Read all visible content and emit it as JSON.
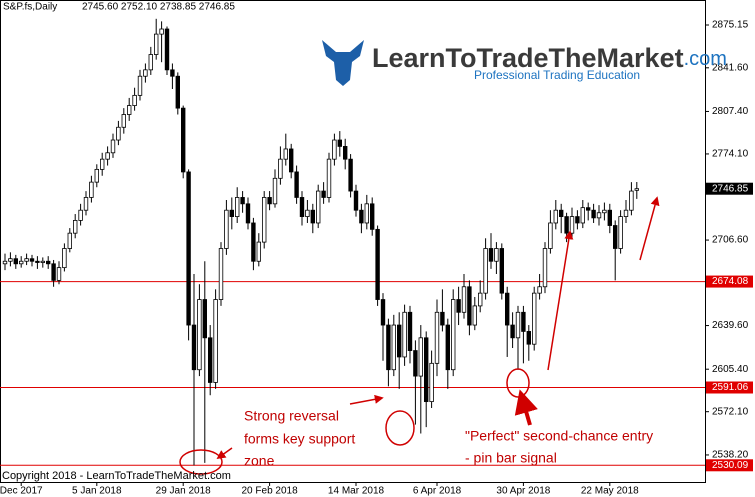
{
  "chart_data": {
    "type": "candlestick",
    "symbol": "S&P.fs,Daily",
    "header_ohlc": "2745.60 2752.10 2738.85 2746.85",
    "copyright": "Copyright 2018 - LearnToTradeTheMarket.com",
    "logo_name": "LearnToTradeTheMarket",
    "logo_suffix": ".com",
    "logo_tagline": "Professional Trading Education",
    "annotations": [
      "Strong reversal",
      "forms key support",
      "zone",
      "\"Perfect\" second-chance entry",
      "- pin bar signal"
    ],
    "categories": [
      null,
      null,
      null,
      "Dec 2017",
      null,
      null,
      null,
      null,
      null,
      null,
      null,
      null,
      null,
      null,
      null,
      null,
      null,
      "5 Jan 2018",
      null,
      null,
      null,
      null,
      null,
      null,
      null,
      null,
      null,
      null,
      null,
      null,
      null,
      null,
      null,
      "29 Jan 2018",
      null,
      null,
      null,
      null,
      null,
      null,
      null,
      null,
      null,
      null,
      null,
      null,
      null,
      null,
      null,
      "20 Feb 2018",
      null,
      null,
      null,
      null,
      null,
      null,
      null,
      null,
      null,
      null,
      null,
      null,
      null,
      null,
      null,
      "14 Mar 2018",
      null,
      null,
      null,
      null,
      null,
      null,
      null,
      null,
      null,
      null,
      null,
      null,
      null,
      null,
      "6 Apr 2018",
      null,
      null,
      null,
      null,
      null,
      null,
      null,
      null,
      null,
      null,
      null,
      null,
      null,
      null,
      null,
      "30 Apr 2018",
      null,
      null,
      null,
      null,
      null,
      null,
      null,
      null,
      null,
      null,
      null,
      null,
      null,
      null,
      null,
      "22 May 2018",
      null,
      null,
      null,
      null,
      null
    ],
    "open": [
      2688,
      2690,
      2692,
      2688,
      2690,
      2692,
      2690,
      2689,
      2690,
      2688,
      2675,
      2685,
      2700,
      2712,
      2722,
      2730,
      2740,
      2752,
      2762,
      2770,
      2775,
      2785,
      2795,
      2805,
      2812,
      2820,
      2835,
      2840,
      2852,
      2868,
      2872,
      2840,
      2835,
      2810,
      2760,
      2640,
      2605,
      2660,
      2630,
      2595,
      2660,
      2700,
      2730,
      2725,
      2740,
      2735,
      2720,
      2690,
      2705,
      2740,
      2735,
      2755,
      2770,
      2778,
      2760,
      2740,
      2725,
      2730,
      2720,
      2745,
      2740,
      2770,
      2785,
      2780,
      2770,
      2745,
      2730,
      2720,
      2735,
      2715,
      2660,
      2640,
      2605,
      2640,
      2615,
      2650,
      2620,
      2600,
      2630,
      2580,
      2610,
      2650,
      2640,
      2605,
      2660,
      2650,
      2670,
      2640,
      2655,
      2665,
      2700,
      2690,
      2700,
      2665,
      2640,
      2630,
      2650,
      2635,
      2625,
      2665,
      2670,
      2700,
      2720,
      2730,
      2725,
      2712,
      2725,
      2720,
      2732,
      2730,
      2724,
      2728,
      2730,
      2718,
      2700,
      2725,
      2730,
      2745.6
    ],
    "high": [
      2696,
      2697,
      2695,
      2694,
      2696,
      2695,
      2694,
      2693,
      2694,
      2691,
      2690,
      2704,
      2716,
      2727,
      2735,
      2745,
      2757,
      2766,
      2775,
      2780,
      2790,
      2800,
      2810,
      2818,
      2826,
      2840,
      2845,
      2858,
      2880,
      2878,
      2874,
      2845,
      2838,
      2812,
      2762,
      2680,
      2672,
      2690,
      2640,
      2668,
      2705,
      2738,
      2740,
      2748,
      2745,
      2740,
      2724,
      2712,
      2745,
      2745,
      2762,
      2780,
      2790,
      2782,
      2765,
      2745,
      2738,
      2735,
      2750,
      2752,
      2775,
      2790,
      2792,
      2786,
      2774,
      2750,
      2735,
      2742,
      2740,
      2718,
      2665,
      2645,
      2648,
      2650,
      2656,
      2655,
      2628,
      2640,
      2635,
      2620,
      2660,
      2668,
      2645,
      2668,
      2670,
      2680,
      2675,
      2662,
      2675,
      2708,
      2712,
      2705,
      2704,
      2670,
      2650,
      2655,
      2655,
      2640,
      2670,
      2680,
      2705,
      2730,
      2738,
      2735,
      2728,
      2732,
      2730,
      2738,
      2736,
      2735,
      2734,
      2736,
      2735,
      2722,
      2730,
      2738,
      2752,
      2752.1
    ],
    "low": [
      2683,
      2686,
      2684,
      2685,
      2687,
      2686,
      2684,
      2685,
      2684,
      2670,
      2672,
      2682,
      2697,
      2708,
      2718,
      2726,
      2736,
      2748,
      2757,
      2765,
      2771,
      2781,
      2790,
      2800,
      2808,
      2816,
      2830,
      2836,
      2848,
      2846,
      2836,
      2825,
      2805,
      2755,
      2628,
      2530,
      2600,
      2532,
      2585,
      2590,
      2655,
      2695,
      2715,
      2720,
      2728,
      2715,
      2683,
      2686,
      2700,
      2730,
      2732,
      2750,
      2765,
      2755,
      2735,
      2718,
      2720,
      2712,
      2716,
      2735,
      2736,
      2765,
      2772,
      2762,
      2740,
      2725,
      2712,
      2715,
      2710,
      2655,
      2612,
      2592,
      2600,
      2590,
      2608,
      2610,
      2562,
      2555,
      2560,
      2575,
      2600,
      2635,
      2590,
      2600,
      2640,
      2645,
      2632,
      2636,
      2650,
      2660,
      2684,
      2680,
      2660,
      2615,
      2622,
      2605,
      2610,
      2612,
      2620,
      2660,
      2665,
      2696,
      2715,
      2712,
      2705,
      2708,
      2715,
      2716,
      2722,
      2720,
      2718,
      2722,
      2712,
      2675,
      2696,
      2720,
      2726,
      2738.85
    ],
    "close": [
      2690,
      2692,
      2688,
      2690,
      2692,
      2690,
      2689,
      2690,
      2688,
      2675,
      2685,
      2700,
      2712,
      2722,
      2730,
      2740,
      2752,
      2762,
      2770,
      2775,
      2785,
      2795,
      2805,
      2812,
      2820,
      2835,
      2840,
      2852,
      2868,
      2872,
      2840,
      2835,
      2810,
      2760,
      2640,
      2605,
      2660,
      2630,
      2595,
      2660,
      2700,
      2730,
      2725,
      2740,
      2735,
      2720,
      2690,
      2705,
      2740,
      2735,
      2755,
      2770,
      2778,
      2760,
      2740,
      2725,
      2730,
      2720,
      2745,
      2740,
      2770,
      2785,
      2780,
      2770,
      2745,
      2730,
      2720,
      2735,
      2715,
      2660,
      2640,
      2605,
      2640,
      2615,
      2650,
      2620,
      2600,
      2630,
      2580,
      2610,
      2650,
      2640,
      2605,
      2660,
      2650,
      2670,
      2640,
      2655,
      2665,
      2700,
      2690,
      2700,
      2665,
      2640,
      2630,
      2650,
      2635,
      2625,
      2665,
      2670,
      2700,
      2720,
      2730,
      2725,
      2712,
      2725,
      2720,
      2732,
      2730,
      2724,
      2728,
      2730,
      2718,
      2700,
      2725,
      2730,
      2745,
      2746.85
    ],
    "up_color": "#ffffff",
    "down_color": "#000000",
    "ylim": [
      2517.0,
      2894.74
    ],
    "yticks": [
      {
        "value": 2875.15,
        "label": "2875.15"
      },
      {
        "value": 2841.6,
        "label": "2841.60"
      },
      {
        "value": 2807.4,
        "label": "2807.40"
      },
      {
        "value": 2774.1,
        "label": "2774.10"
      },
      {
        "value": 2706.6,
        "label": "2706.60"
      },
      {
        "value": 2639.6,
        "label": "2639.60"
      },
      {
        "value": 2605.4,
        "label": "2605.40"
      },
      {
        "value": 2572.1,
        "label": "2572.10"
      },
      {
        "value": 2538.2,
        "label": "2538.20"
      }
    ],
    "current_price": {
      "value": 2746.85,
      "label": "2746.85"
    },
    "price_lines": [
      {
        "value": 2674.08,
        "label": "2674.08",
        "color": "#e00000"
      },
      {
        "value": 2591.06,
        "label": "2591.06",
        "color": "#e00000"
      },
      {
        "value": 2530.09,
        "label": "2530.09",
        "color": "#e00000"
      }
    ]
  }
}
